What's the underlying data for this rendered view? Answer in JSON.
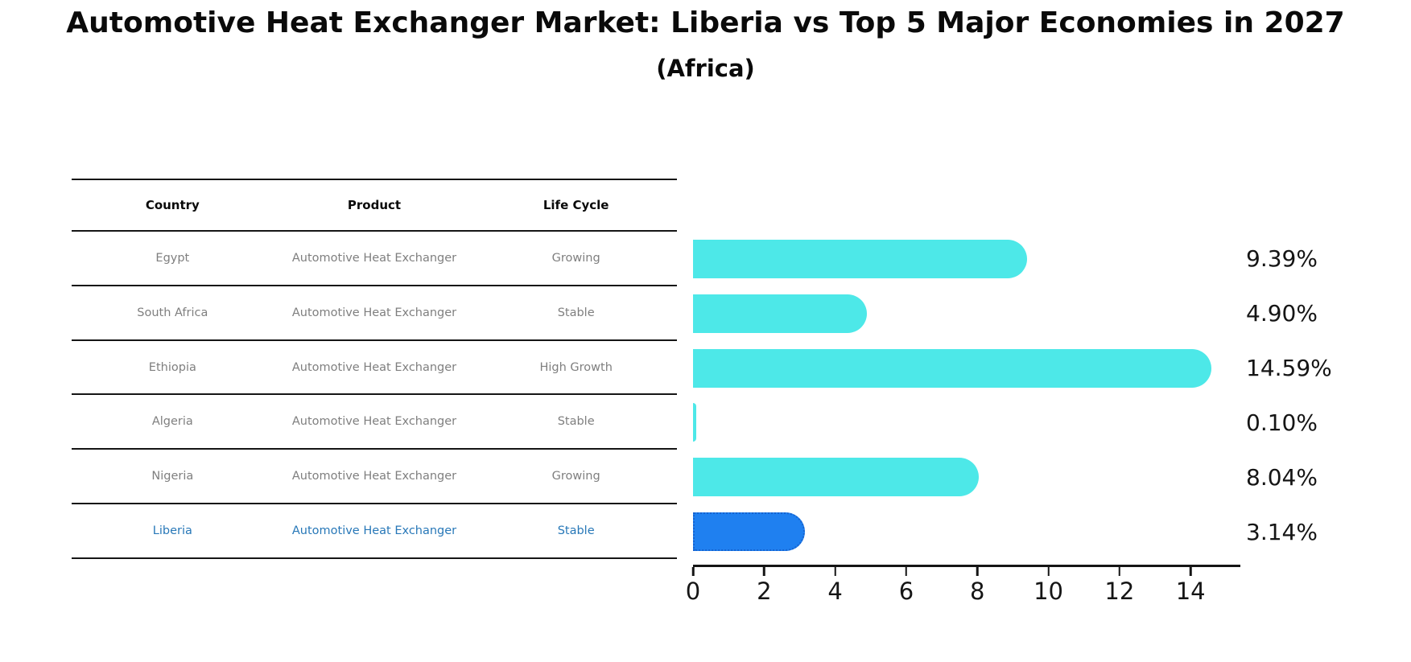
{
  "title": "Automotive Heat Exchanger Market: Liberia vs Top 5 Major Economies in 2027",
  "subtitle": "(Africa)",
  "table": {
    "headers": [
      "Country",
      "Product",
      "Life Cycle"
    ],
    "rows": [
      {
        "country": "Egypt",
        "product": "Automotive Heat Exchanger",
        "life_cycle": "Growing",
        "highlighted": false
      },
      {
        "country": "South Africa",
        "product": "Automotive Heat Exchanger",
        "life_cycle": "Stable",
        "highlighted": false
      },
      {
        "country": "Ethiopia",
        "product": "Automotive Heat Exchanger",
        "life_cycle": "High Growth",
        "highlighted": false
      },
      {
        "country": "Algeria",
        "product": "Automotive Heat Exchanger",
        "life_cycle": "Stable",
        "highlighted": false
      },
      {
        "country": "Nigeria",
        "product": "Automotive Heat Exchanger",
        "life_cycle": "Growing",
        "highlighted": false
      },
      {
        "country": "Liberia",
        "product": "Automotive Heat Exchanger",
        "life_cycle": "Stable",
        "highlighted": true
      }
    ]
  },
  "chart_data": {
    "type": "bar",
    "orientation": "horizontal",
    "title": "Automotive Heat Exchanger Market: Liberia vs Top 5 Major Economies in 2027 (Africa)",
    "categories": [
      "Egypt",
      "South Africa",
      "Ethiopia",
      "Algeria",
      "Nigeria",
      "Liberia"
    ],
    "values": [
      9.39,
      4.9,
      14.59,
      0.1,
      8.04,
      3.14
    ],
    "value_labels": [
      "9.39%",
      "4.90%",
      "14.59%",
      "0.10%",
      "8.04%",
      "3.14%"
    ],
    "xticks": [
      0,
      2,
      4,
      6,
      8,
      10,
      12,
      14
    ],
    "xlim": [
      0,
      15.4
    ],
    "grid": false,
    "legend": false,
    "bar_color": "#4DE8E8",
    "highlight_color": "#1F80F0",
    "highlight_border_color": "#1663CF",
    "highlight_index": 5,
    "highlight_text_color": "#2878B8"
  }
}
